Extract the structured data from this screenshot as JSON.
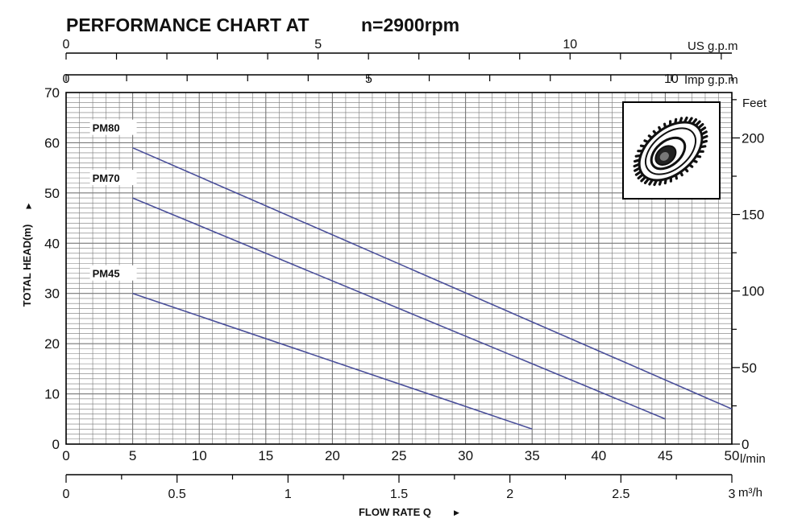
{
  "title": "PERFORMANCE CHART AT",
  "subtitle": "n=2900rpm",
  "chart_data": {
    "type": "line",
    "x_unit": "l/min",
    "y_unit": "m",
    "xlim": [
      0,
      50
    ],
    "ylim": [
      0,
      70
    ],
    "grid": true,
    "xlabel": "FLOW RATE Q",
    "ylabel": "TOTAL HEAD(m)",
    "x_ticks": [
      0,
      5,
      10,
      15,
      20,
      25,
      30,
      35,
      40,
      45,
      50
    ],
    "y_ticks": [
      0,
      10,
      20,
      30,
      40,
      50,
      60,
      70
    ],
    "series": [
      {
        "name": "PM80",
        "x": [
          5,
          50
        ],
        "y": [
          59,
          7
        ]
      },
      {
        "name": "PM70",
        "x": [
          5,
          45
        ],
        "y": [
          49,
          5
        ]
      },
      {
        "name": "PM45",
        "x": [
          5,
          35
        ],
        "y": [
          30,
          3
        ]
      }
    ],
    "secondary_axes": {
      "us_gpm": {
        "unit": "US g.p.m",
        "range": [
          0,
          13.21
        ],
        "labels": [
          0,
          5,
          10
        ]
      },
      "imp_gpm": {
        "unit": "Imp g.p.m",
        "range": [
          0,
          11.0
        ],
        "labels": [
          0,
          5,
          10
        ]
      },
      "feet": {
        "unit": "Feet",
        "range": [
          0,
          229.66
        ],
        "labels": [
          0,
          50,
          100,
          150,
          200
        ]
      },
      "m3h": {
        "unit": "m³/h",
        "range": [
          0,
          3
        ],
        "labels": [
          "0",
          "0.5",
          "1",
          "1.5",
          "2",
          "2.5",
          "3"
        ]
      }
    },
    "colors": {
      "series": "#4a4f9a",
      "grid": "#777777",
      "frame": "#000000"
    }
  },
  "icons": {
    "impeller": "impeller-icon"
  }
}
